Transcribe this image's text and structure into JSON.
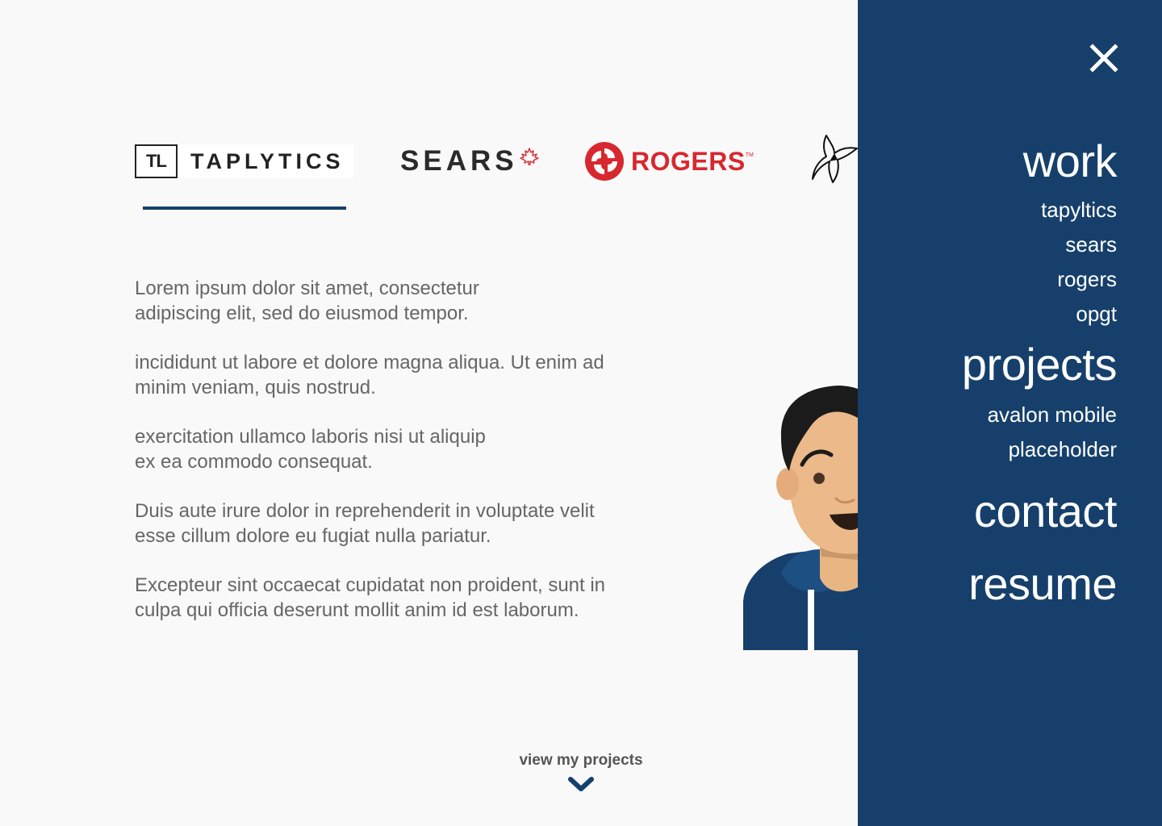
{
  "logos": {
    "taplytics": {
      "mark": "TL",
      "word": "TAPLYTICS"
    },
    "sears": {
      "word": "SEARS"
    },
    "rogers": {
      "word": "ROGERS",
      "tm": "TM"
    }
  },
  "content": {
    "paragraphs": [
      "Lorem ipsum dolor sit amet, consectetur\nadipiscing elit, sed do eiusmod tempor.",
      "incididunt ut labore et dolore magna aliqua. Ut enim ad\nminim veniam, quis nostrud.",
      "exercitation ullamco laboris nisi ut aliquip\nex ea commodo consequat.",
      "Duis aute irure dolor in reprehenderit in voluptate velit\nesse cillum dolore eu fugiat nulla pariatur.",
      "Excepteur sint occaecat cupidatat non proident, sunt in\nculpa qui officia deserunt mollit anim id est laborum."
    ]
  },
  "footer": {
    "view_projects": "view my projects"
  },
  "menu": {
    "work": "work",
    "work_items": [
      "tapyltics",
      "sears",
      "rogers",
      "opgt"
    ],
    "projects": "projects",
    "project_items": [
      "avalon mobile",
      "placeholder"
    ],
    "contact": "contact",
    "resume": "resume"
  },
  "colors": {
    "accent": "#16406b",
    "rogers_red": "#d7282f",
    "background": "#f9f9f9",
    "body_text": "#666666"
  },
  "icons": {
    "close": "close-icon",
    "scroll": "chevron-down-icon"
  }
}
